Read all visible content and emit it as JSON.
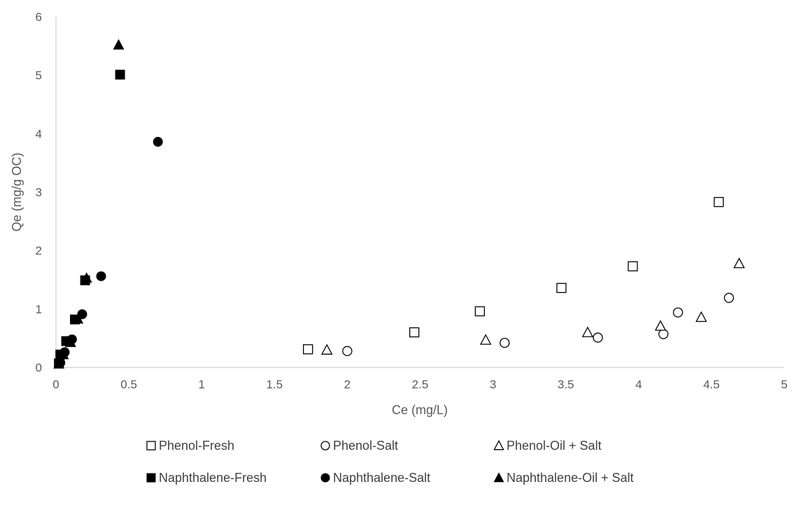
{
  "chart_data": {
    "type": "scatter",
    "xlabel": "Ce (mg/L)",
    "ylabel": "Qe (mg/g OC)",
    "xlim": [
      0,
      5
    ],
    "ylim": [
      0,
      6
    ],
    "x_ticks": [
      0,
      0.5,
      1,
      1.5,
      2,
      2.5,
      3,
      3.5,
      4,
      4.5,
      5
    ],
    "y_ticks": [
      0,
      1,
      2,
      3,
      4,
      5,
      6
    ],
    "x_tick_labels": [
      "0",
      "0.5",
      "1",
      "1.5",
      "2",
      "2.5",
      "3",
      "3.5",
      "4",
      "4.5",
      "5"
    ],
    "y_tick_labels": [
      "0",
      "1",
      "2",
      "3",
      "4",
      "5",
      "6"
    ],
    "grid": false,
    "legend_position": "bottom",
    "series": [
      {
        "name": "Phenol-Fresh",
        "marker": "square",
        "filled": false,
        "points": [
          [
            1.73,
            0.31
          ],
          [
            2.46,
            0.6
          ],
          [
            2.91,
            0.96
          ],
          [
            3.47,
            1.36
          ],
          [
            3.96,
            1.73
          ],
          [
            4.55,
            2.83
          ]
        ]
      },
      {
        "name": "Phenol-Salt",
        "marker": "circle",
        "filled": false,
        "points": [
          [
            2.0,
            0.28
          ],
          [
            3.08,
            0.42
          ],
          [
            3.72,
            0.51
          ],
          [
            4.17,
            0.57
          ],
          [
            4.27,
            0.94
          ],
          [
            4.62,
            1.19
          ]
        ]
      },
      {
        "name": "Phenol-Oil + Salt",
        "marker": "triangle",
        "filled": false,
        "points": [
          [
            1.86,
            0.3
          ],
          [
            2.95,
            0.47
          ],
          [
            3.65,
            0.6
          ],
          [
            4.15,
            0.71
          ],
          [
            4.43,
            0.86
          ],
          [
            4.69,
            1.78
          ]
        ]
      },
      {
        "name": "Naphthalene-Fresh",
        "marker": "square",
        "filled": true,
        "points": [
          [
            0.02,
            0.07
          ],
          [
            0.03,
            0.22
          ],
          [
            0.07,
            0.45
          ],
          [
            0.13,
            0.82
          ],
          [
            0.2,
            1.49
          ],
          [
            0.44,
            5.01
          ]
        ]
      },
      {
        "name": "Naphthalene-Salt",
        "marker": "circle",
        "filled": true,
        "points": [
          [
            0.03,
            0.08
          ],
          [
            0.06,
            0.26
          ],
          [
            0.11,
            0.48
          ],
          [
            0.18,
            0.91
          ],
          [
            0.31,
            1.56
          ],
          [
            0.7,
            3.86
          ]
        ]
      },
      {
        "name": "Naphthalene-Oil + Salt",
        "marker": "triangle",
        "filled": true,
        "points": [
          [
            0.02,
            0.06
          ],
          [
            0.05,
            0.22
          ],
          [
            0.1,
            0.43
          ],
          [
            0.15,
            0.83
          ],
          [
            0.21,
            1.53
          ],
          [
            0.43,
            5.52
          ]
        ]
      }
    ]
  }
}
